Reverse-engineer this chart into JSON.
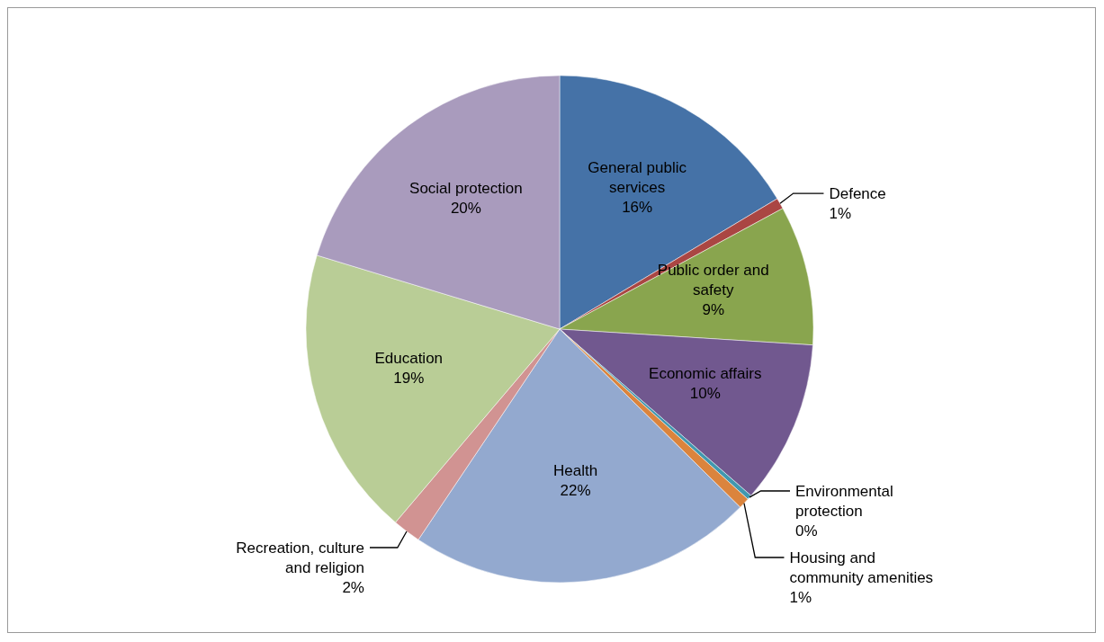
{
  "chart_data": {
    "type": "pie",
    "categories": [
      "General public services",
      "Defence",
      "Public order and safety",
      "Economic affairs",
      "Environmental protection",
      "Housing and community amenities",
      "Health",
      "Recreation, culture and religion",
      "Education",
      "Social protection"
    ],
    "values": [
      16.4,
      0.7,
      8.9,
      10.4,
      0.3,
      0.7,
      22.0,
      1.8,
      18.5,
      20.3
    ],
    "value_labels": [
      "16%",
      "1%",
      "9%",
      "10%",
      "0%",
      "1%",
      "22%",
      "2%",
      "19%",
      "20%"
    ],
    "colors": [
      "#4572a7",
      "#aa4643",
      "#89a54e",
      "#71588f",
      "#4198af",
      "#db843d",
      "#93a9cf",
      "#d19392",
      "#b9cd96",
      "#a99bbd"
    ]
  }
}
